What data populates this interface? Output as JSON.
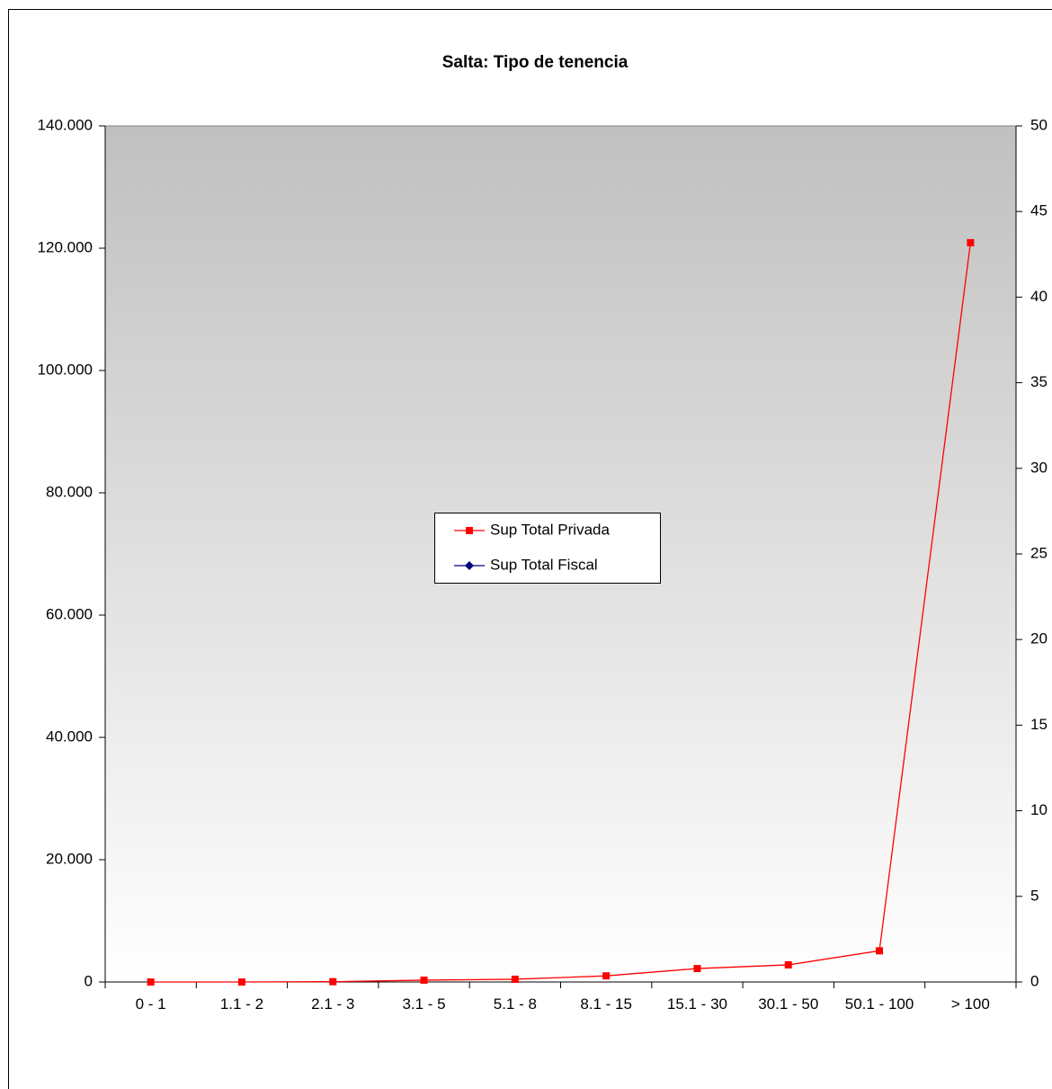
{
  "chart_data": {
    "type": "line",
    "title": "Salta: Tipo de tenencia",
    "categories": [
      "0 - 1",
      "1.1 - 2",
      "2.1 - 3",
      "3.1 - 5",
      "5.1 - 8",
      "8.1 - 15",
      "15.1 - 30",
      "30.1 - 50",
      "50.1 - 100",
      "> 100"
    ],
    "series": [
      {
        "name": "Sup Total Privada",
        "color": "#ff0000",
        "marker": "square",
        "values": [
          0,
          0,
          50,
          300,
          450,
          1000,
          2200,
          2800,
          5100,
          120900
        ]
      },
      {
        "name": "Sup Total Fiscal",
        "color": "#000080",
        "marker": "diamond",
        "axis": "y2",
        "values": [
          null,
          null,
          null,
          null,
          null,
          null,
          null,
          null,
          null,
          null
        ]
      }
    ],
    "ylim": [
      0,
      140000
    ],
    "yticks": [
      {
        "value": 0,
        "label": "0"
      },
      {
        "value": 20000,
        "label": "20.000"
      },
      {
        "value": 40000,
        "label": "40.000"
      },
      {
        "value": 60000,
        "label": "60.000"
      },
      {
        "value": 80000,
        "label": "80.000"
      },
      {
        "value": 100000,
        "label": "100.000"
      },
      {
        "value": 120000,
        "label": "120.000"
      },
      {
        "value": 140000,
        "label": "140.000"
      }
    ],
    "y2lim": [
      0,
      50
    ],
    "y2ticks": [
      0,
      5,
      10,
      15,
      20,
      25,
      30,
      35,
      40,
      45,
      50
    ],
    "legend": "center"
  }
}
